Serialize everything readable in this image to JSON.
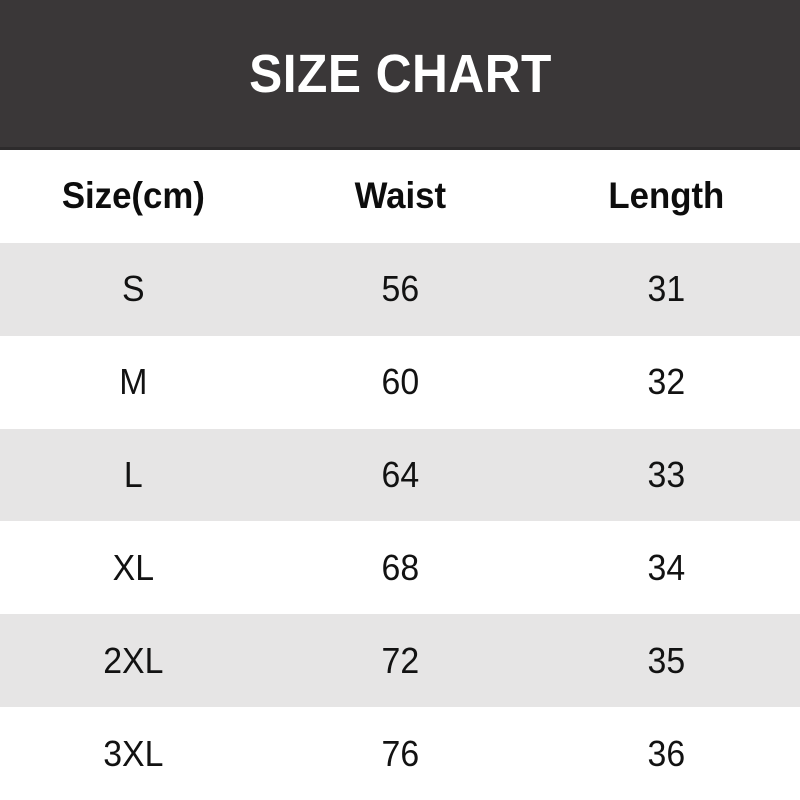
{
  "banner": {
    "title": "SIZE CHART",
    "bg_color": "#3a3738",
    "edge_color": "#2d2b2c",
    "text_color": "#ffffff"
  },
  "table": {
    "stripe_color": "#e6e5e5",
    "row_color": "#ffffff",
    "text_color": "#121212",
    "headers": {
      "size": "Size(cm)",
      "waist": "Waist",
      "length": "Length"
    },
    "rows": [
      {
        "size": "S",
        "waist": "56",
        "length": "31"
      },
      {
        "size": "M",
        "waist": "60",
        "length": "32"
      },
      {
        "size": "L",
        "waist": "64",
        "length": "33"
      },
      {
        "size": "XL",
        "waist": "68",
        "length": "34"
      },
      {
        "size": "2XL",
        "waist": "72",
        "length": "35"
      },
      {
        "size": "3XL",
        "waist": "76",
        "length": "36"
      }
    ]
  },
  "chart_data": {
    "type": "table",
    "title": "SIZE CHART",
    "columns": [
      "Size(cm)",
      "Waist",
      "Length"
    ],
    "rows": [
      [
        "S",
        56,
        31
      ],
      [
        "M",
        60,
        32
      ],
      [
        "L",
        64,
        33
      ],
      [
        "XL",
        68,
        34
      ],
      [
        "2XL",
        72,
        35
      ],
      [
        "3XL",
        76,
        36
      ]
    ],
    "layout_hints": {
      "striped_rows": true,
      "stripe_color": "#e6e5e5",
      "header_banner_color": "#3a3738",
      "units": "cm"
    }
  }
}
